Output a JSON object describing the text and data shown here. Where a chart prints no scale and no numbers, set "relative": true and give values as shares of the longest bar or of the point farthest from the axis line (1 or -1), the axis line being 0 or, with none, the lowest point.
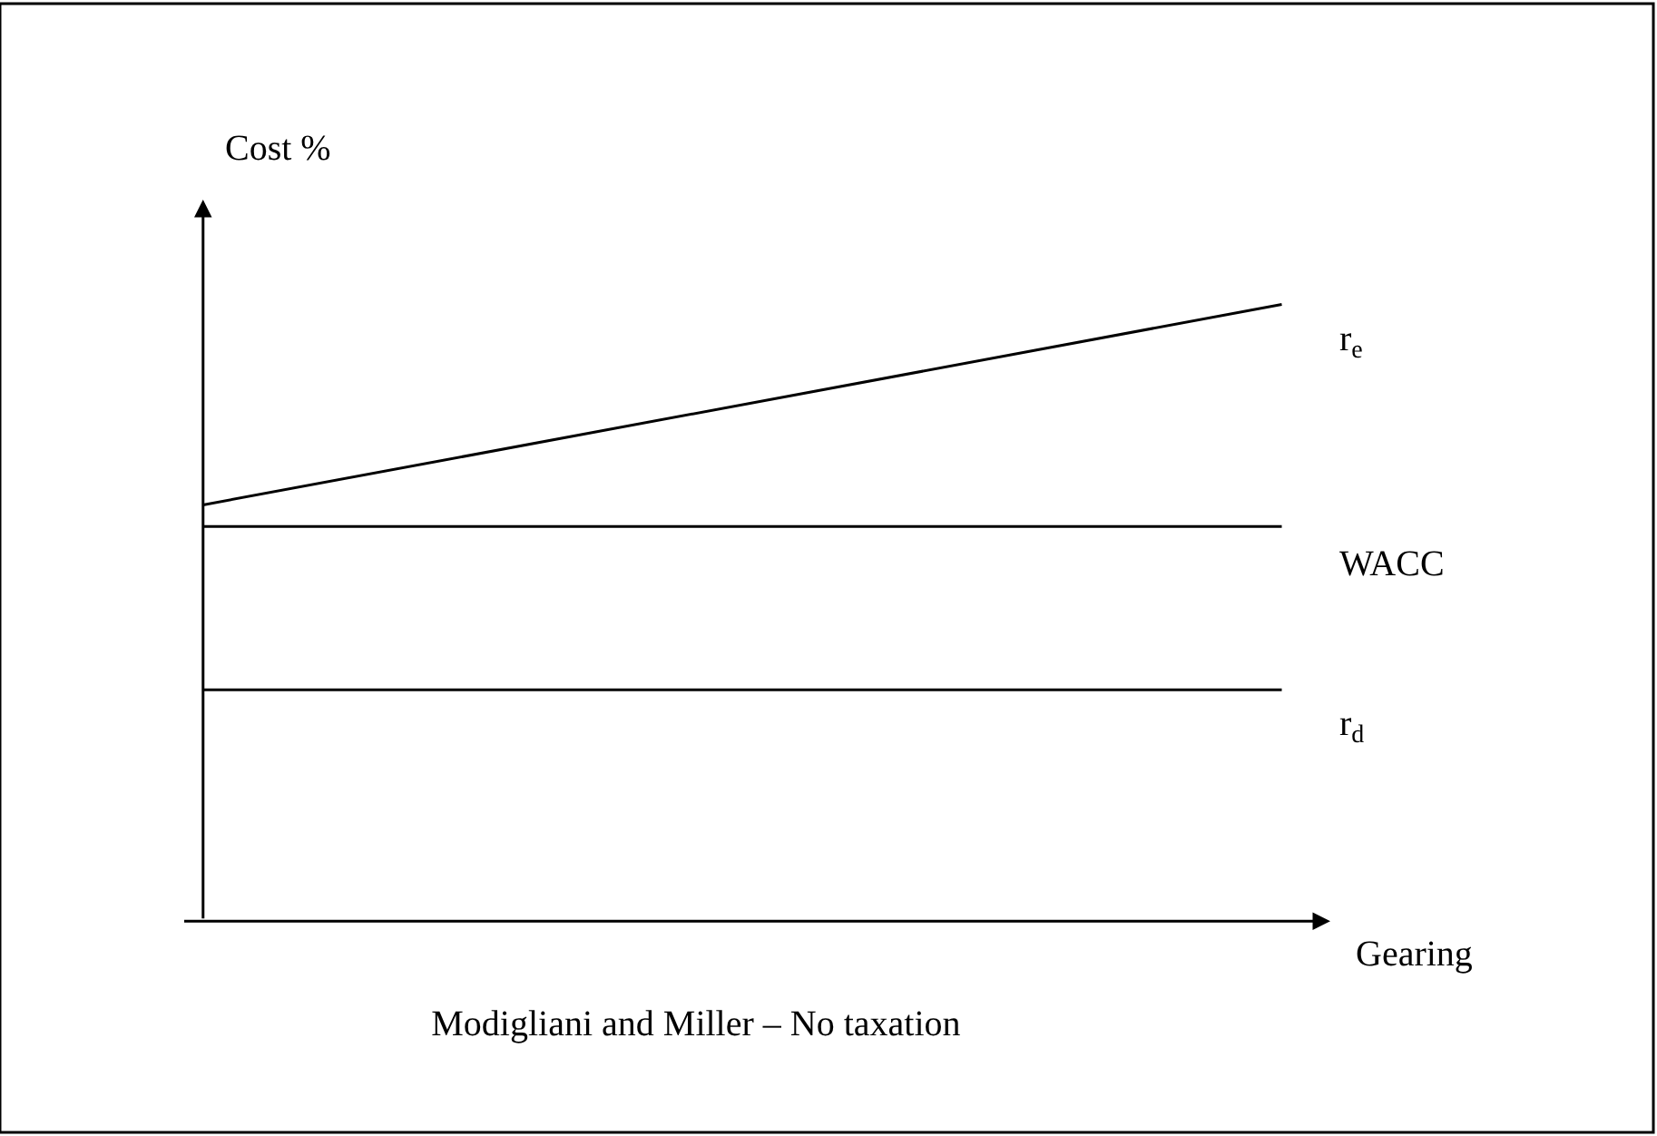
{
  "chart_data": {
    "type": "line",
    "title": "Modigliani and Miller – No taxation",
    "xlabel": "Gearing",
    "ylabel": "Cost %",
    "relative": true,
    "legend": false,
    "categories": [
      null,
      null
    ],
    "series": [
      {
        "name": "r$_{e}$",
        "color": "#000000",
        "values": [
          0.675,
          1
        ]
      },
      {
        "name": "WACC",
        "color": "#000000",
        "values": [
          0.64,
          0.64
        ]
      },
      {
        "name": "r$_{d}$",
        "color": "#000000",
        "values": [
          0.375,
          0.375
        ]
      }
    ]
  }
}
